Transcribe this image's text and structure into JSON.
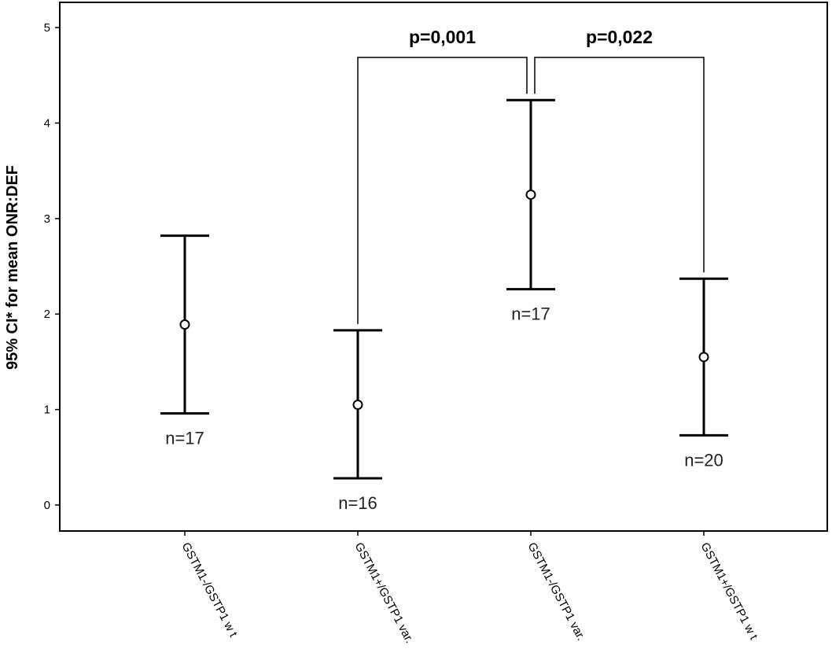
{
  "chart_data": {
    "type": "errorbar",
    "categories": [
      "GSTM1-/GSTP1 w t",
      "GSTM1+/GSTP1 var.",
      "GSTM1-/GSTP1 var.",
      "GSTM1+/GSTP1 w t"
    ],
    "means": [
      1.89,
      1.05,
      3.25,
      1.55
    ],
    "lower": [
      0.96,
      0.28,
      2.26,
      0.73
    ],
    "upper": [
      2.82,
      1.83,
      4.24,
      2.37
    ],
    "n_labels": [
      "n=17",
      "n=16",
      "n=17",
      "n=20"
    ],
    "xlabel": "",
    "ylabel": "95% CI* for mean ONR:DEF",
    "ylim": [
      0,
      5
    ],
    "yticks": [
      "0",
      "1",
      "2",
      "3",
      "4",
      "5"
    ],
    "grid": false,
    "comparisons": [
      {
        "from": 1,
        "to": 2,
        "label": "p=0,001"
      },
      {
        "from": 2,
        "to": 3,
        "label": "p=0,022"
      }
    ]
  }
}
